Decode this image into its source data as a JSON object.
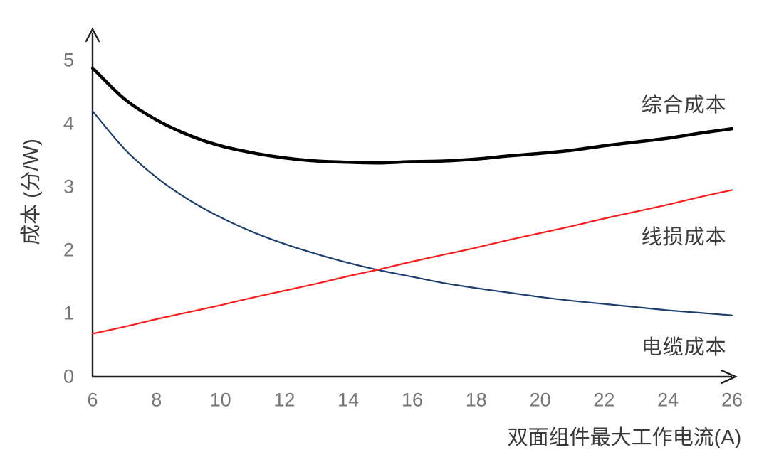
{
  "chart_data": {
    "type": "line",
    "title": "",
    "xlabel": "双面组件最大工作电流(A)",
    "ylabel": "成本 (分/W)",
    "xlim": [
      6,
      26
    ],
    "ylim": [
      0,
      5
    ],
    "x_ticks": [
      6,
      8,
      10,
      12,
      14,
      16,
      18,
      20,
      22,
      24,
      26
    ],
    "y_ticks": [
      0,
      1,
      2,
      3,
      4,
      5
    ],
    "grid": false,
    "legend_position": "inline-annotations",
    "x": [
      6,
      7,
      8,
      9,
      10,
      11,
      12,
      13,
      14,
      15,
      16,
      17,
      18,
      19,
      20,
      21,
      22,
      23,
      24,
      25,
      26
    ],
    "series": [
      {
        "key": "cable_cost",
        "name": "电缆成本",
        "color": "#1c3f6e",
        "stroke_width": 2.2,
        "values": [
          4.2,
          3.6,
          3.15,
          2.8,
          2.52,
          2.29,
          2.1,
          1.94,
          1.8,
          1.68,
          1.58,
          1.48,
          1.4,
          1.33,
          1.26,
          1.2,
          1.15,
          1.1,
          1.05,
          1.01,
          0.97
        ]
      },
      {
        "key": "line_loss_cost",
        "name": "线损成本",
        "color": "#fb1d1d",
        "stroke_width": 2.2,
        "values": [
          0.68,
          0.79,
          0.91,
          1.02,
          1.13,
          1.25,
          1.36,
          1.47,
          1.59,
          1.7,
          1.82,
          1.93,
          2.04,
          2.16,
          2.27,
          2.38,
          2.5,
          2.61,
          2.72,
          2.84,
          2.95
        ]
      },
      {
        "key": "combined_cost",
        "name": "综合成本",
        "color": "#000000",
        "stroke_width": 4.5,
        "values": [
          4.88,
          4.39,
          4.06,
          3.82,
          3.65,
          3.54,
          3.46,
          3.41,
          3.39,
          3.38,
          3.4,
          3.41,
          3.44,
          3.49,
          3.53,
          3.58,
          3.65,
          3.71,
          3.77,
          3.85,
          3.92
        ]
      }
    ],
    "annotations": [
      {
        "text": "综合成本",
        "ax": 24.5,
        "ay": 4.33
      },
      {
        "text": "线损成本",
        "ax": 24.5,
        "ay": 2.24
      },
      {
        "text": "电缆成本",
        "ax": 24.5,
        "ay": 0.49
      }
    ],
    "axis_color": "#1f1f1f",
    "tick_color": "#767676"
  }
}
